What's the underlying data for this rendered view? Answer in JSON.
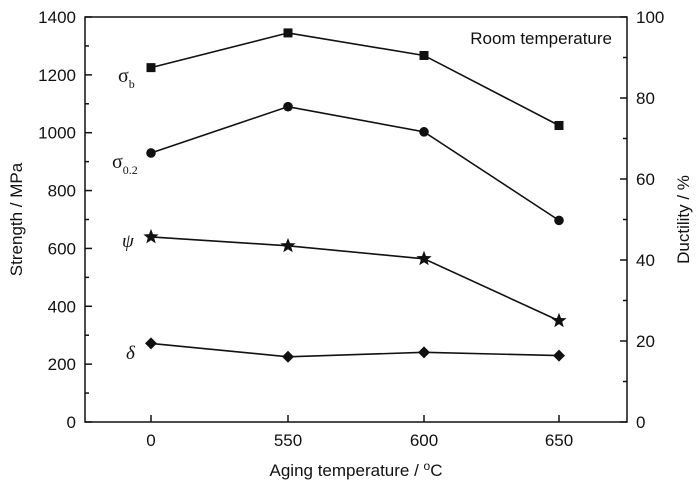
{
  "chart_data": {
    "type": "line",
    "title": "",
    "annotation": "Room temperature",
    "categories": [
      "0",
      "550",
      "600",
      "650"
    ],
    "xlabel": "Aging temperature / °C",
    "xlabel_parts": {
      "main": "Aging temperature / ",
      "sup": "o",
      "unit": "C"
    },
    "ylabel_left": "Strength / MPa",
    "ylabel_right": "Ductility / %",
    "ylim_left": [
      0,
      1400
    ],
    "ylim_right": [
      0,
      100
    ],
    "yticks_left": [
      0,
      200,
      400,
      600,
      800,
      1000,
      1200,
      1400
    ],
    "yticks_right": [
      0,
      20,
      40,
      60,
      80,
      100
    ],
    "series": [
      {
        "name": "σb",
        "symbol": "σ",
        "sub": "b",
        "marker": "square",
        "axis": "left",
        "values": [
          1225,
          1345,
          1267,
          1025
        ]
      },
      {
        "name": "σ0.2",
        "symbol": "σ",
        "sub": "0.2",
        "marker": "circle",
        "axis": "left",
        "values": [
          930,
          1090,
          1003,
          697
        ]
      },
      {
        "name": "ψ",
        "symbol": "ψ",
        "sub": "",
        "marker": "star",
        "axis": "right",
        "values": [
          45.7,
          43.5,
          40.3,
          25.0
        ]
      },
      {
        "name": "δ",
        "symbol": "δ",
        "sub": "",
        "marker": "diamond",
        "axis": "right",
        "values": [
          19.4,
          16.1,
          17.2,
          16.4
        ]
      }
    ]
  }
}
